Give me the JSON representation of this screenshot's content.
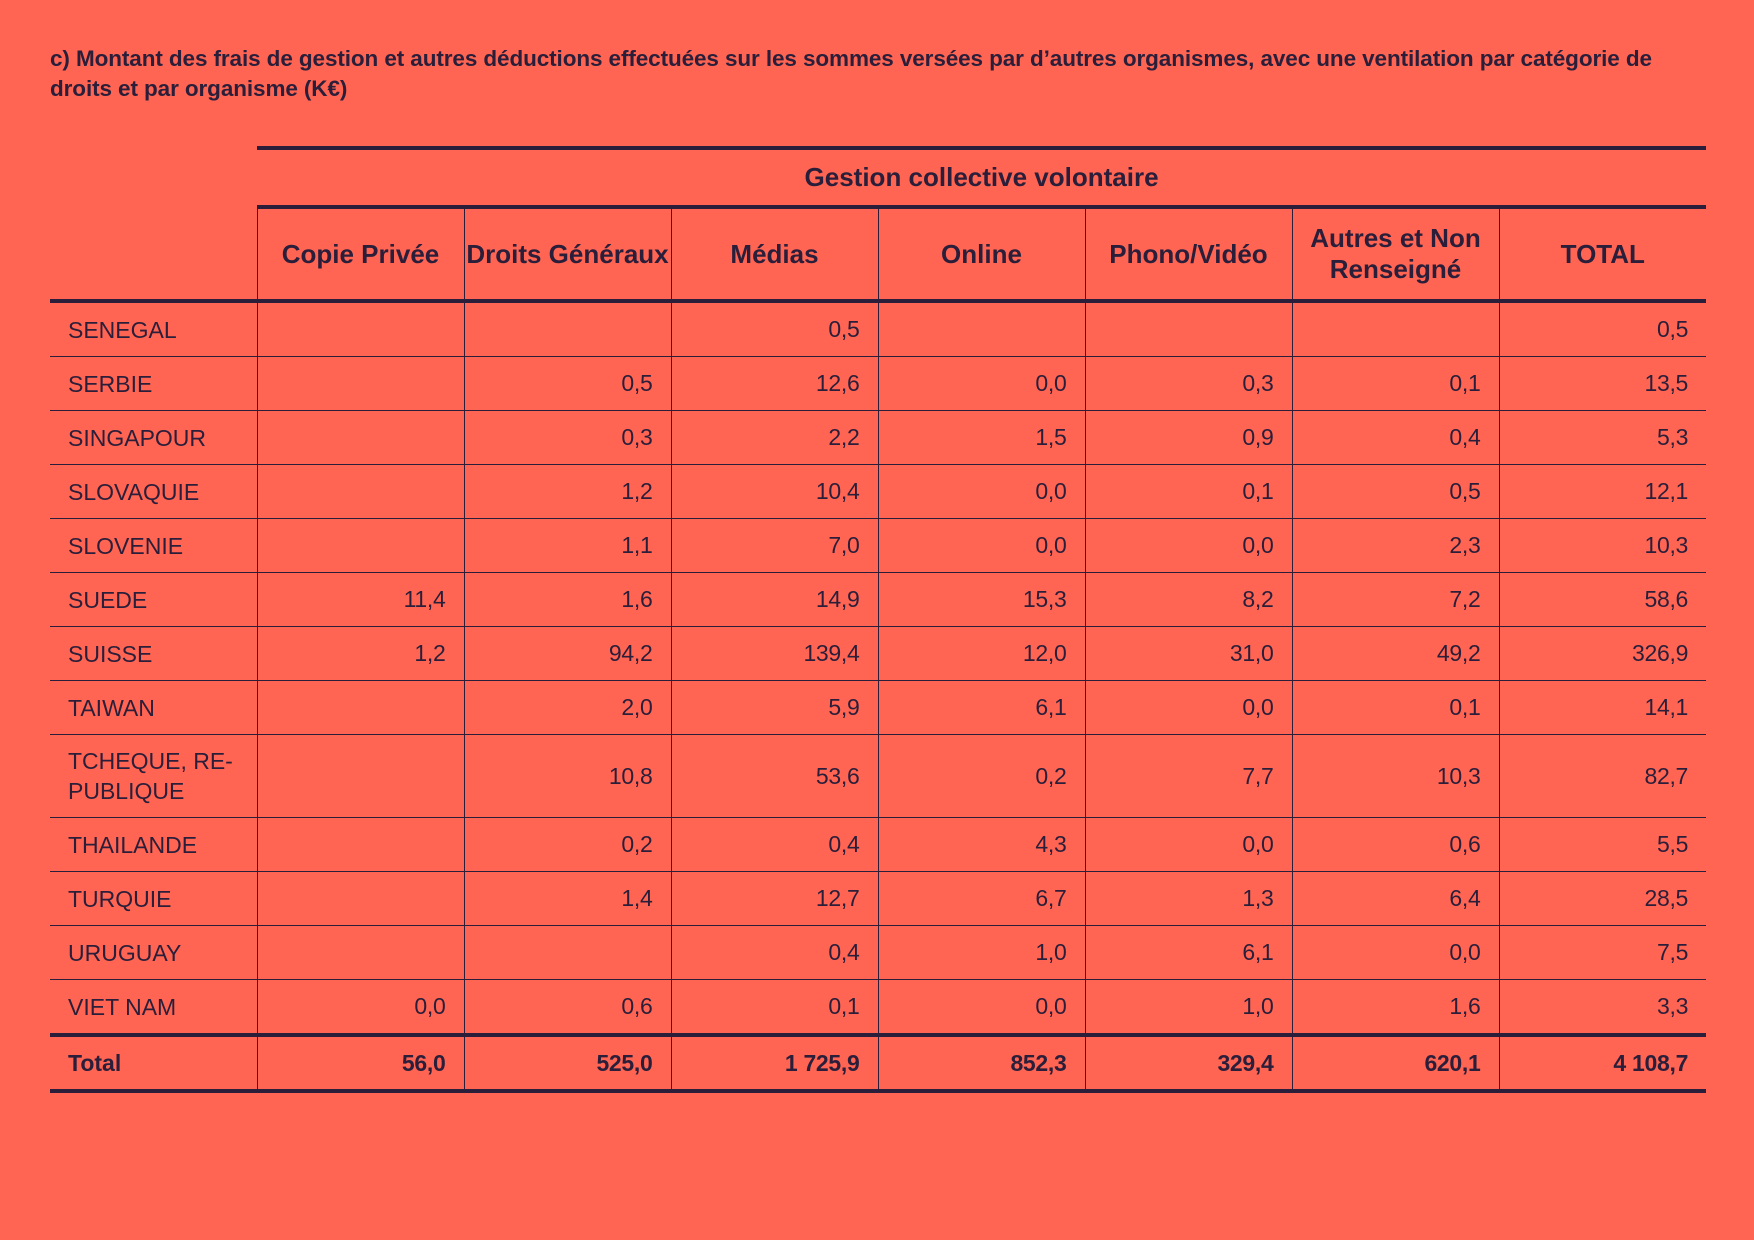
{
  "title": "c) Montant des frais de gestion et autres déductions effectuées sur les sommes versées par d’autres organismes, avec une ventilation par catégorie de droits et par organisme (K€)",
  "group_header": "Gestion collective volontaire",
  "columns": [
    "Copie Privée",
    "Droits Généraux",
    "Médias",
    "Online",
    "Phono/Vidéo",
    "Autres et Non Renseigné",
    "TOTAL"
  ],
  "rows": [
    {
      "name": "SENEGAL",
      "values": [
        "",
        "",
        "0,5",
        "",
        "",
        "",
        "0,5"
      ]
    },
    {
      "name": "SERBIE",
      "values": [
        "",
        "0,5",
        "12,6",
        "0,0",
        "0,3",
        "0,1",
        "13,5"
      ]
    },
    {
      "name": "SINGAPOUR",
      "values": [
        "",
        "0,3",
        "2,2",
        "1,5",
        "0,9",
        "0,4",
        "5,3"
      ]
    },
    {
      "name": "SLOVAQUIE",
      "values": [
        "",
        "1,2",
        "10,4",
        "0,0",
        "0,1",
        "0,5",
        "12,1"
      ]
    },
    {
      "name": "SLOVENIE",
      "values": [
        "",
        "1,1",
        "7,0",
        "0,0",
        "0,0",
        "2,3",
        "10,3"
      ]
    },
    {
      "name": "SUEDE",
      "values": [
        "11,4",
        "1,6",
        "14,9",
        "15,3",
        "8,2",
        "7,2",
        "58,6"
      ]
    },
    {
      "name": "SUISSE",
      "values": [
        "1,2",
        "94,2",
        "139,4",
        "12,0",
        "31,0",
        "49,2",
        "326,9"
      ]
    },
    {
      "name": "TAIWAN",
      "values": [
        "",
        "2,0",
        "5,9",
        "6,1",
        "0,0",
        "0,1",
        "14,1"
      ]
    },
    {
      "name": "TCHEQUE, RE-PUBLIQUE",
      "values": [
        "",
        "10,8",
        "53,6",
        "0,2",
        "7,7",
        "10,3",
        "82,7"
      ]
    },
    {
      "name": "THAILANDE",
      "values": [
        "",
        "0,2",
        "0,4",
        "4,3",
        "0,0",
        "0,6",
        "5,5"
      ]
    },
    {
      "name": "TURQUIE",
      "values": [
        "",
        "1,4",
        "12,7",
        "6,7",
        "1,3",
        "6,4",
        "28,5"
      ]
    },
    {
      "name": "URUGUAY",
      "values": [
        "",
        "",
        "0,4",
        "1,0",
        "6,1",
        "0,0",
        "7,5"
      ]
    },
    {
      "name": "VIET NAM",
      "values": [
        "0,0",
        "0,6",
        "0,1",
        "0,0",
        "1,0",
        "1,6",
        "3,3"
      ]
    }
  ],
  "total": {
    "name": "Total",
    "values": [
      "56,0",
      "525,0",
      "1 725,9",
      "852,3",
      "329,4",
      "620,1",
      "4 108,7"
    ]
  }
}
